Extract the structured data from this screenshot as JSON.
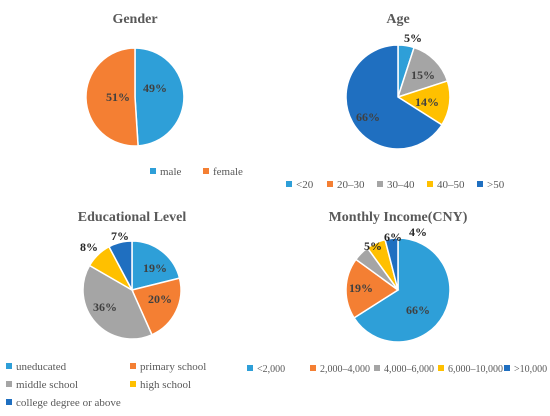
{
  "chart_data": [
    {
      "type": "pie",
      "title": "Gender",
      "categories": [
        "male",
        "female"
      ],
      "values": [
        49,
        51
      ],
      "labels": [
        "49%",
        "51%"
      ],
      "colors": [
        "#2E9FD8",
        "#F47F33"
      ],
      "legend": "bottom"
    },
    {
      "type": "pie",
      "title": "Age",
      "categories": [
        "<20",
        "20–30",
        "30–40",
        "40–50",
        ">50"
      ],
      "values": [
        5,
        0,
        15,
        14,
        66
      ],
      "labels": [
        "5%",
        "",
        "15%",
        "14%",
        "66%"
      ],
      "colors": [
        "#2E9FD8",
        "#F47F33",
        "#A5A5A5",
        "#FFC000",
        "#1F6FC0"
      ],
      "legend": "bottom"
    },
    {
      "type": "pie",
      "title": "Educational Level",
      "categories": [
        "uneducated",
        "primary school",
        "middle school",
        "high school",
        "college degree or above"
      ],
      "values": [
        19,
        20,
        36,
        8,
        7
      ],
      "labels": [
        "19%",
        "20%",
        "36%",
        "8%",
        "7%"
      ],
      "colors": [
        "#2E9FD8",
        "#F47F33",
        "#A5A5A5",
        "#FFC000",
        "#1F6FC0"
      ],
      "legend": "bottom"
    },
    {
      "type": "pie",
      "title": "Monthly Income(CNY)",
      "categories": [
        "<2,000",
        "2,000–4,000",
        "4,000–6,000",
        "6,000–10,000",
        ">10,000"
      ],
      "values": [
        66,
        19,
        5,
        6,
        4
      ],
      "labels": [
        "66%",
        "19%",
        "5%",
        "6%",
        "4%"
      ],
      "colors": [
        "#2E9FD8",
        "#F47F33",
        "#A5A5A5",
        "#FFC000",
        "#1F6FC0"
      ],
      "legend": "bottom"
    }
  ]
}
